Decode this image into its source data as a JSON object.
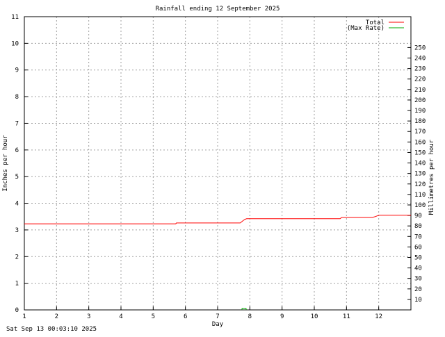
{
  "chart_data": {
    "type": "line",
    "title": "Rainfall ending 12 September 2025",
    "xlabel": "Day",
    "ylabel": "Inches per hour",
    "y2label": "Millimetres per hour",
    "xlim": [
      1,
      13
    ],
    "ylim": [
      0,
      11
    ],
    "y2lim": [
      0,
      279.4
    ],
    "x_ticks": [
      "1",
      "2",
      "3",
      "4",
      "5",
      "6",
      "7",
      "8",
      "9",
      "10",
      "11",
      "12"
    ],
    "y_ticks": [
      "0",
      "1",
      "2",
      "3",
      "4",
      "5",
      "6",
      "7",
      "8",
      "9",
      "10",
      "11"
    ],
    "y2_ticks": [
      "10",
      "20",
      "30",
      "40",
      "50",
      "60",
      "70",
      "80",
      "90",
      "100",
      "110",
      "120",
      "130",
      "140",
      "150",
      "160",
      "170",
      "180",
      "190",
      "200",
      "210",
      "220",
      "230",
      "240",
      "250"
    ],
    "grid": true,
    "legend_position": "top-right",
    "series": [
      {
        "name": "Total",
        "color": "#ff0000",
        "points": [
          [
            1,
            3.23
          ],
          [
            5.7,
            3.23
          ],
          [
            5.72,
            3.26
          ],
          [
            7.7,
            3.26
          ],
          [
            7.8,
            3.36
          ],
          [
            7.85,
            3.4
          ],
          [
            7.9,
            3.42
          ],
          [
            10.8,
            3.42
          ],
          [
            10.85,
            3.47
          ],
          [
            11.8,
            3.47
          ],
          [
            11.9,
            3.5
          ],
          [
            12.0,
            3.55
          ],
          [
            13,
            3.55
          ]
        ]
      },
      {
        "name": "(Max Rate)",
        "color": "#00aa00",
        "points": [
          [
            7.75,
            0
          ],
          [
            7.76,
            0.06
          ],
          [
            7.88,
            0.06
          ],
          [
            7.89,
            0
          ]
        ]
      }
    ]
  },
  "footer": {
    "timestamp": "Sat Sep 13 00:03:10 2025"
  }
}
